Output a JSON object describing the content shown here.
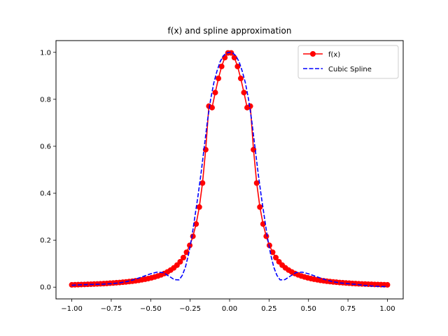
{
  "chart_data": {
    "type": "line",
    "title": "f(x) and spline approximation",
    "xlabel": "",
    "ylabel": "",
    "xlim": [
      -1.1,
      1.1
    ],
    "ylim": [
      -0.05,
      1.05
    ],
    "xticks": [
      -1.0,
      -0.75,
      -0.5,
      -0.25,
      0.0,
      0.25,
      0.5,
      0.75,
      1.0
    ],
    "xtick_labels": [
      "−1.00",
      "−0.75",
      "−0.50",
      "−0.25",
      "0.00",
      "0.25",
      "0.50",
      "0.75",
      "1.00"
    ],
    "yticks": [
      0.0,
      0.2,
      0.4,
      0.6,
      0.8,
      1.0
    ],
    "ytick_labels": [
      "0.0",
      "0.2",
      "0.4",
      "0.6",
      "0.8",
      "1.0"
    ],
    "grid": false,
    "legend_position": "top-right",
    "series": [
      {
        "name": "f(x)",
        "color": "#ff0000",
        "style": "solid-with-circle-markers",
        "x": [
          -1.0,
          -0.9798,
          -0.9596,
          -0.9394,
          -0.9192,
          -0.899,
          -0.8788,
          -0.8586,
          -0.8384,
          -0.8182,
          -0.798,
          -0.7778,
          -0.7576,
          -0.7374,
          -0.7172,
          -0.697,
          -0.6768,
          -0.6566,
          -0.6364,
          -0.6162,
          -0.596,
          -0.5758,
          -0.5556,
          -0.5354,
          -0.5152,
          -0.4949,
          -0.4747,
          -0.4545,
          -0.4343,
          -0.4141,
          -0.3939,
          -0.3737,
          -0.3535,
          -0.3333,
          -0.3131,
          -0.2929,
          -0.2727,
          -0.2525,
          -0.2323,
          -0.2121,
          -0.1919,
          -0.1717,
          -0.1515,
          -0.1313,
          -0.1111,
          -0.0909,
          -0.0707,
          -0.0505,
          -0.0303,
          -0.0101,
          0.0101,
          0.0303,
          0.0505,
          0.0707,
          0.0909,
          0.1111,
          0.1313,
          0.1515,
          0.1717,
          0.1919,
          0.2121,
          0.2323,
          0.2525,
          0.2727,
          0.2929,
          0.3131,
          0.3333,
          0.3535,
          0.3737,
          0.3939,
          0.4141,
          0.4343,
          0.4545,
          0.4747,
          0.4949,
          0.5152,
          0.5354,
          0.5556,
          0.5758,
          0.596,
          0.6162,
          0.6364,
          0.6566,
          0.6768,
          0.697,
          0.7172,
          0.7374,
          0.7576,
          0.7778,
          0.798,
          0.8182,
          0.8384,
          0.8586,
          0.8788,
          0.899,
          0.9192,
          0.9394,
          0.9596,
          0.9798,
          1.0
        ],
        "y": [
          0.0099,
          0.0103,
          0.0107,
          0.0112,
          0.0116,
          0.0121,
          0.0127,
          0.0133,
          0.0139,
          0.0145,
          0.0152,
          0.016,
          0.0169,
          0.0178,
          0.0188,
          0.0198,
          0.021,
          0.0223,
          0.0237,
          0.0253,
          0.0271,
          0.029,
          0.0313,
          0.0337,
          0.0365,
          0.0397,
          0.0434,
          0.0476,
          0.0524,
          0.0581,
          0.0648,
          0.0727,
          0.0822,
          0.0938,
          0.1081,
          0.1259,
          0.1486,
          0.1779,
          0.2166,
          0.2689,
          0.3412,
          0.4434,
          0.5855,
          0.7708,
          0.7647,
          0.8288,
          0.8889,
          0.9399,
          0.9776,
          0.9976,
          0.9976,
          0.9776,
          0.9399,
          0.8889,
          0.8288,
          0.7647,
          0.7708,
          0.5855,
          0.4434,
          0.3412,
          0.2689,
          0.2166,
          0.1779,
          0.1486,
          0.1259,
          0.1081,
          0.0938,
          0.0822,
          0.0727,
          0.0648,
          0.0581,
          0.0524,
          0.0476,
          0.0434,
          0.0397,
          0.0365,
          0.0337,
          0.0313,
          0.029,
          0.0271,
          0.0253,
          0.0237,
          0.0223,
          0.021,
          0.0198,
          0.0188,
          0.0178,
          0.0169,
          0.016,
          0.0152,
          0.0145,
          0.0139,
          0.0133,
          0.0127,
          0.0121,
          0.0116,
          0.0112,
          0.0107,
          0.0103,
          0.0099
        ]
      },
      {
        "name": "Cubic Spline",
        "color": "#0000ff",
        "style": "dashed",
        "x": [
          -1.0,
          -0.95,
          -0.9,
          -0.85,
          -0.8,
          -0.75,
          -0.7,
          -0.65,
          -0.6,
          -0.55,
          -0.5,
          -0.46,
          -0.42,
          -0.38,
          -0.35,
          -0.32,
          -0.3,
          -0.28,
          -0.26,
          -0.24,
          -0.22,
          -0.2,
          -0.18,
          -0.16,
          -0.14,
          -0.12,
          -0.1,
          -0.08,
          -0.06,
          -0.04,
          -0.02,
          0.0,
          0.02,
          0.04,
          0.06,
          0.08,
          0.1,
          0.12,
          0.14,
          0.16,
          0.18,
          0.2,
          0.22,
          0.24,
          0.26,
          0.28,
          0.3,
          0.32,
          0.35,
          0.38,
          0.42,
          0.46,
          0.5,
          0.55,
          0.6,
          0.65,
          0.7,
          0.75,
          0.8,
          0.85,
          0.9,
          0.95,
          1.0
        ],
        "y": [
          0.008,
          0.01,
          0.011,
          0.012,
          0.013,
          0.015,
          0.018,
          0.024,
          0.033,
          0.045,
          0.057,
          0.064,
          0.062,
          0.045,
          0.032,
          0.031,
          0.05,
          0.085,
          0.14,
          0.21,
          0.3,
          0.39,
          0.49,
          0.6,
          0.71,
          0.8,
          0.87,
          0.92,
          0.96,
          0.985,
          0.997,
          1.0,
          0.997,
          0.985,
          0.96,
          0.92,
          0.87,
          0.8,
          0.71,
          0.6,
          0.49,
          0.39,
          0.3,
          0.21,
          0.14,
          0.085,
          0.05,
          0.031,
          0.032,
          0.045,
          0.062,
          0.064,
          0.057,
          0.045,
          0.033,
          0.024,
          0.018,
          0.015,
          0.012,
          0.008,
          0.005,
          0.003,
          0.002
        ]
      }
    ]
  }
}
